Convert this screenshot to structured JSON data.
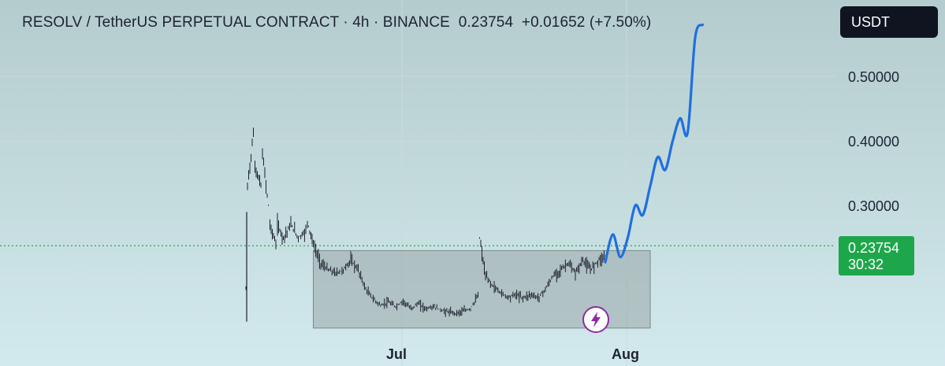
{
  "header": {
    "symbol": "RESOLV / TetherUS PERPETUAL CONTRACT",
    "interval": "4h",
    "exchange": "BINANCE",
    "last_price": "0.23754",
    "change": "+0.01652",
    "change_pct": "(+7.50%)",
    "separator": "·"
  },
  "currency_button": {
    "label": "USDT"
  },
  "price_tag": {
    "price": "0.23754",
    "countdown": "30:32"
  },
  "axis": {
    "y_ticks": [
      "0.50000",
      "0.40000",
      "0.30000"
    ],
    "x_ticks": [
      "Jul",
      "Aug"
    ]
  },
  "colors": {
    "projection": "#1f6fe0",
    "candles": "#1c1f2e",
    "current_price": "#1ea64b",
    "range_box": "#8e9a98",
    "bolt": "#8e2aa3"
  },
  "chart_data": {
    "type": "line",
    "title": "RESOLV / TetherUS PERPETUAL CONTRACT · 4h · BINANCE",
    "x_axis": {
      "ticks": [
        "Jul",
        "Aug"
      ]
    },
    "y_axis": {
      "ticks": [
        0.3,
        0.4,
        0.5
      ],
      "range": [
        0.085,
        0.6
      ]
    },
    "current_price": 0.23754,
    "series": [
      {
        "values_by_date": [
          [
            "2025-06-10",
            0.17
          ],
          [
            "2025-06-10",
            0.33
          ],
          [
            "2025-06-11",
            0.41
          ],
          [
            "2025-06-11",
            0.36
          ],
          [
            "2025-06-12",
            0.33
          ],
          [
            "2025-06-12",
            0.38
          ],
          [
            "2025-06-13",
            0.3
          ],
          [
            "2025-06-13",
            0.27
          ],
          [
            "2025-06-14",
            0.24
          ],
          [
            "2025-06-14",
            0.27
          ],
          [
            "2025-06-15",
            0.25
          ],
          [
            "2025-06-16",
            0.27
          ],
          [
            "2025-06-17",
            0.25
          ],
          [
            "2025-06-18",
            0.26
          ],
          [
            "2025-06-18",
            0.275
          ],
          [
            "2025-06-19",
            0.24
          ],
          [
            "2025-06-20",
            0.21
          ],
          [
            "2025-06-21",
            0.2
          ],
          [
            "2025-06-22",
            0.195
          ],
          [
            "2025-06-23",
            0.2
          ],
          [
            "2025-06-24",
            0.215
          ],
          [
            "2025-06-25",
            0.2
          ],
          [
            "2025-06-26",
            0.17
          ],
          [
            "2025-06-27",
            0.155
          ],
          [
            "2025-06-28",
            0.145
          ],
          [
            "2025-06-29",
            0.15
          ],
          [
            "2025-06-30",
            0.143
          ],
          [
            "2025-07-01",
            0.152
          ],
          [
            "2025-07-02",
            0.14
          ],
          [
            "2025-07-03",
            0.148
          ],
          [
            "2025-07-04",
            0.14
          ],
          [
            "2025-07-05",
            0.143
          ],
          [
            "2025-07-06",
            0.138
          ],
          [
            "2025-07-07",
            0.135
          ],
          [
            "2025-07-08",
            0.133
          ],
          [
            "2025-07-09",
            0.136
          ],
          [
            "2025-07-10",
            0.14
          ],
          [
            "2025-07-11",
            0.16
          ],
          [
            "2025-07-11",
            0.25
          ],
          [
            "2025-07-12",
            0.19
          ],
          [
            "2025-07-13",
            0.175
          ],
          [
            "2025-07-14",
            0.165
          ],
          [
            "2025-07-15",
            0.158
          ],
          [
            "2025-07-16",
            0.162
          ],
          [
            "2025-07-17",
            0.157
          ],
          [
            "2025-07-18",
            0.162
          ],
          [
            "2025-07-19",
            0.157
          ],
          [
            "2025-07-20",
            0.17
          ],
          [
            "2025-07-21",
            0.19
          ],
          [
            "2025-07-22",
            0.2
          ],
          [
            "2025-07-23",
            0.21
          ],
          [
            "2025-07-24",
            0.195
          ],
          [
            "2025-07-25",
            0.215
          ],
          [
            "2025-07-26",
            0.2
          ],
          [
            "2025-07-27",
            0.215
          ],
          [
            "2025-07-28",
            0.222
          ],
          [
            "2025-07-28",
            0.23754
          ]
        ]
      },
      {
        "values_by_date": [
          [
            "2025-07-28",
            0.212
          ],
          [
            "2025-07-29",
            0.255
          ],
          [
            "2025-07-30",
            0.22
          ],
          [
            "2025-07-31",
            0.25
          ],
          [
            "2025-08-01",
            0.3
          ],
          [
            "2025-08-02",
            0.285
          ],
          [
            "2025-08-03",
            0.33
          ],
          [
            "2025-08-04",
            0.375
          ],
          [
            "2025-08-05",
            0.355
          ],
          [
            "2025-08-06",
            0.4
          ],
          [
            "2025-08-07",
            0.435
          ],
          [
            "2025-08-08",
            0.413
          ],
          [
            "2025-08-09",
            0.56
          ],
          [
            "2025-08-10",
            0.58
          ]
        ]
      }
    ],
    "range_box": {
      "x_start": "2025-06-19",
      "x_end": "2025-08-03",
      "y_low": 0.11,
      "y_high": 0.23
    }
  }
}
